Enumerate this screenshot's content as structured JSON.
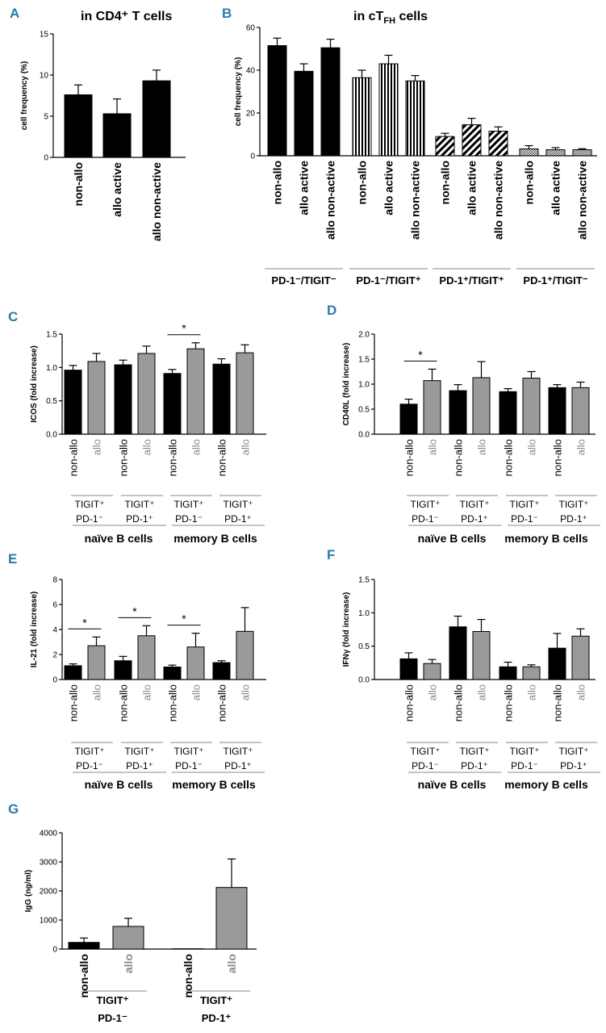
{
  "colors": {
    "black": "#000000",
    "grey": "#9a9a9a",
    "accent": "#2c7aa8"
  },
  "chart_data": [
    {
      "panel": "A",
      "type": "bar",
      "title": "in CD4⁺ T cells",
      "ylabel": "cell frequency (%)",
      "ylim": [
        0,
        15
      ],
      "yticks": [
        0,
        5,
        10,
        15
      ],
      "categories": [
        "non-allo",
        "allo active",
        "allo non-active"
      ],
      "values": [
        7.6,
        5.3,
        9.3
      ],
      "errors": [
        1.2,
        1.8,
        1.3
      ]
    },
    {
      "panel": "B",
      "type": "bar",
      "title": "in cT",
      "title_sub": "FH",
      "title_end": " cells",
      "ylabel": "cell frequency (%)",
      "ylim": [
        0,
        60
      ],
      "yticks": [
        0,
        20,
        40,
        60
      ],
      "groups": [
        {
          "label": "PD-1⁻/TIGIT⁻",
          "pattern": "solid",
          "categories": [
            "non-allo",
            "allo active",
            "allo non-active"
          ],
          "values": [
            51.5,
            39.5,
            50.5
          ],
          "errors": [
            3.5,
            3.5,
            4
          ]
        },
        {
          "label": "PD-1⁻/TIGIT⁺",
          "pattern": "vstripe",
          "categories": [
            "non-allo",
            "allo active",
            "allo non-active"
          ],
          "values": [
            36.5,
            43,
            35
          ],
          "errors": [
            3.5,
            4,
            2.5
          ]
        },
        {
          "label": "PD-1⁺/TIGIT⁺",
          "pattern": "diag",
          "categories": [
            "non-allo",
            "allo active",
            "allo non-active"
          ],
          "values": [
            9,
            14.5,
            11.5
          ],
          "errors": [
            1.5,
            3,
            2
          ]
        },
        {
          "label": "PD-1⁺/TIGIT⁻",
          "pattern": "check",
          "categories": [
            "non-allo",
            "allo active",
            "allo non-active"
          ],
          "values": [
            3.2,
            2.8,
            2.8
          ],
          "errors": [
            1.5,
            1,
            0.5
          ]
        }
      ]
    },
    {
      "panel": "C",
      "type": "bar",
      "ylabel": "ICOS (fold increase)",
      "ylim": [
        0,
        1.5
      ],
      "yticks": [
        "0.0",
        "0.5",
        "1.0",
        "1.5"
      ],
      "categories": [
        "non-allo",
        "allo",
        "non-allo",
        "allo",
        "non-allo",
        "allo",
        "non-allo",
        "allo"
      ],
      "values": [
        0.96,
        1.09,
        1.04,
        1.21,
        0.91,
        1.28,
        1.05,
        1.22
      ],
      "errors": [
        0.07,
        0.12,
        0.07,
        0.11,
        0.06,
        0.09,
        0.08,
        0.12
      ],
      "significance": [
        {
          "pair": [
            4,
            5
          ],
          "label": "*"
        }
      ],
      "subgroups": [
        {
          "line1": "TIGIT⁺",
          "line2": "PD-1⁻"
        },
        {
          "line1": "TIGIT⁺",
          "line2": "PD-1⁺"
        },
        {
          "line1": "TIGIT⁺",
          "line2": "PD-1⁻"
        },
        {
          "line1": "TIGIT⁺",
          "line2": "PD-1⁺"
        }
      ],
      "groups": [
        "naïve B cells",
        "memory B cells"
      ]
    },
    {
      "panel": "D",
      "type": "bar",
      "ylabel": "CD40L (fold increase)",
      "ylim": [
        0,
        2.0
      ],
      "yticks": [
        "0.0",
        "0.5",
        "1.0",
        "1.5",
        "2.0"
      ],
      "categories": [
        "non-allo",
        "allo",
        "non-allo",
        "allo",
        "non-allo",
        "allo",
        "non-allo",
        "allo"
      ],
      "values": [
        0.6,
        1.07,
        0.87,
        1.13,
        0.85,
        1.12,
        0.93,
        0.93
      ],
      "errors": [
        0.1,
        0.23,
        0.12,
        0.32,
        0.06,
        0.13,
        0.06,
        0.11
      ],
      "significance": [
        {
          "pair": [
            0,
            1
          ],
          "label": "*"
        }
      ],
      "subgroups": [
        {
          "line1": "TIGIT⁺",
          "line2": "PD-1⁻"
        },
        {
          "line1": "TIGIT⁺",
          "line2": "PD-1⁺"
        },
        {
          "line1": "TIGIT⁺",
          "line2": "PD-1⁻"
        },
        {
          "line1": "TIGIT⁺",
          "line2": "PD-1⁺"
        }
      ],
      "groups": [
        "naïve B cells",
        "memory B cells"
      ]
    },
    {
      "panel": "E",
      "type": "bar",
      "ylabel": "IL-21 (fold increase)",
      "ylim": [
        0,
        8
      ],
      "yticks": [
        "0",
        "2",
        "4",
        "6",
        "8"
      ],
      "categories": [
        "non-allo",
        "allo",
        "non-allo",
        "allo",
        "non-allo",
        "allo",
        "non-allo",
        "allo"
      ],
      "values": [
        1.1,
        2.7,
        1.5,
        3.5,
        1.0,
        2.6,
        1.35,
        3.85
      ],
      "errors": [
        0.15,
        0.7,
        0.35,
        0.8,
        0.15,
        1.1,
        0.15,
        1.9
      ],
      "significance": [
        {
          "pair": [
            0,
            1
          ],
          "label": "*"
        },
        {
          "pair": [
            2,
            3
          ],
          "label": "*"
        },
        {
          "pair": [
            4,
            5
          ],
          "label": "*"
        }
      ],
      "subgroups": [
        {
          "line1": "TIGIT⁺",
          "line2": "PD-1⁻"
        },
        {
          "line1": "TIGIT⁺",
          "line2": "PD-1⁺"
        },
        {
          "line1": "TIGIT⁺",
          "line2": "PD-1⁻"
        },
        {
          "line1": "TIGIT⁺",
          "line2": "PD-1⁺"
        }
      ],
      "groups": [
        "naïve B cells",
        "memory B cells"
      ]
    },
    {
      "panel": "F",
      "type": "bar",
      "ylabel": "IFNγ (fold increase)",
      "ylim": [
        0,
        1.5
      ],
      "yticks": [
        "0.0",
        "0.5",
        "1.0",
        "1.5"
      ],
      "categories": [
        "non-allo",
        "allo",
        "non-allo",
        "allo",
        "non-allo",
        "allo",
        "non-allo",
        "allo"
      ],
      "values": [
        0.31,
        0.24,
        0.79,
        0.72,
        0.19,
        0.19,
        0.47,
        0.65
      ],
      "errors": [
        0.09,
        0.06,
        0.16,
        0.18,
        0.07,
        0.03,
        0.22,
        0.11
      ],
      "significance": [],
      "subgroups": [
        {
          "line1": "TIGIT⁺",
          "line2": "PD-1⁻"
        },
        {
          "line1": "TIGIT⁺",
          "line2": "PD-1⁺"
        },
        {
          "line1": "TIGIT⁺",
          "line2": "PD-1⁻"
        },
        {
          "line1": "TIGIT⁺",
          "line2": "PD-1⁺"
        }
      ],
      "groups": [
        "naïve B cells",
        "memory B cells"
      ]
    },
    {
      "panel": "G",
      "type": "bar",
      "ylabel": "IgG (ng/ml)",
      "ylim": [
        0,
        4000
      ],
      "yticks": [
        "0",
        "1000",
        "2000",
        "3000",
        "4000"
      ],
      "categories": [
        "non-allo",
        "allo",
        "non-allo",
        "allo"
      ],
      "values": [
        230,
        780,
        10,
        2120
      ],
      "errors": [
        150,
        280,
        0,
        980
      ],
      "significance": [],
      "subgroups": [
        {
          "line1": "TIGIT⁺",
          "line2": "PD-1⁻"
        },
        {
          "line1": "TIGIT⁺",
          "line2": "PD-1⁺"
        }
      ],
      "groups": []
    }
  ]
}
